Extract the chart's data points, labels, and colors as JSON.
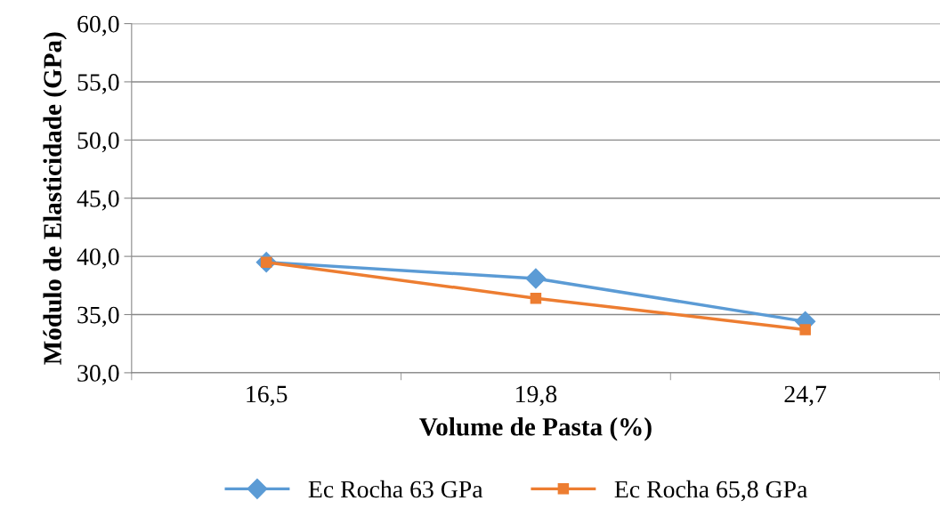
{
  "chart_data": {
    "type": "line",
    "xlabel": "Volume de Pasta (%)",
    "ylabel": "Módulo de Elasticidade (GPa)",
    "categories": [
      "16,5",
      "19,8",
      "24,7"
    ],
    "series": [
      {
        "name": "Ec Rocha 63 GPa",
        "color": "#5b9bd5",
        "marker": "diamond",
        "values": [
          39.5,
          38.1,
          34.4
        ]
      },
      {
        "name": "Ec Rocha 65,8 GPa",
        "color": "#ed7d31",
        "marker": "square",
        "values": [
          39.5,
          36.4,
          33.7
        ]
      }
    ],
    "ylim": [
      30,
      60
    ],
    "yticks": [
      {
        "value": 30,
        "label": "30,0"
      },
      {
        "value": 35,
        "label": "35,0"
      },
      {
        "value": 40,
        "label": "40,0"
      },
      {
        "value": 45,
        "label": "45,0"
      },
      {
        "value": 50,
        "label": "50,0"
      },
      {
        "value": 55,
        "label": "55,0"
      },
      {
        "value": 60,
        "label": "60,0"
      }
    ],
    "grid": "y",
    "legend": "bottom",
    "line_style": "solid"
  }
}
